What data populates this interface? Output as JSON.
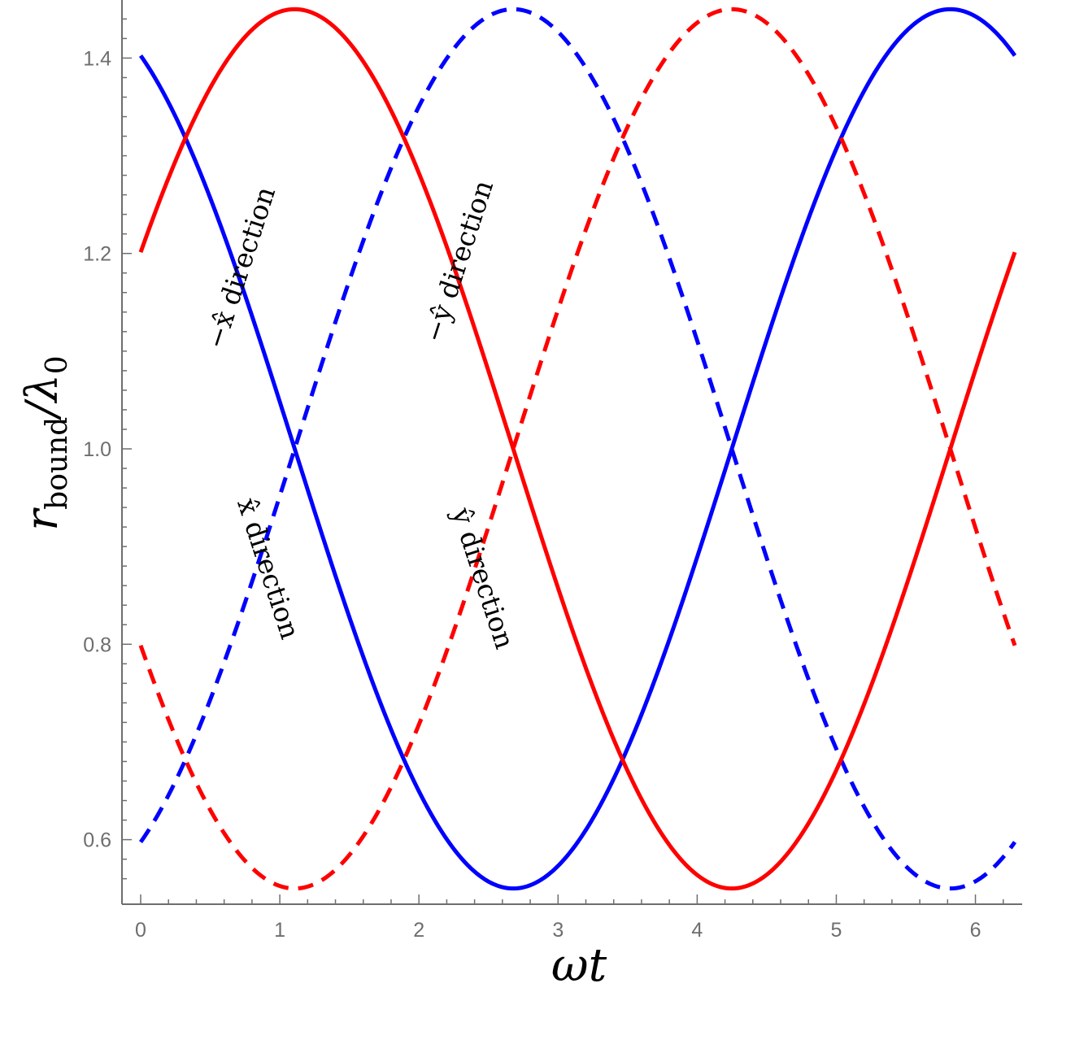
{
  "chart_data": {
    "type": "line",
    "xlabel": "ωt",
    "ylabel_main": "r",
    "ylabel_sub": "bound",
    "ylabel_rest": "/λ",
    "ylabel_rest_sub": "0",
    "xlim": [
      0,
      6.2832
    ],
    "ylim": [
      0.55,
      1.45
    ],
    "xticks": [
      0,
      1,
      2,
      3,
      4,
      5,
      6
    ],
    "yticks": [
      0.6,
      0.8,
      1.0,
      1.2,
      1.4
    ],
    "ytick_labels": [
      "0.6",
      "0.8",
      "1.0",
      "1.2",
      "1.4"
    ],
    "grid": false,
    "colors": {
      "blue": "#0000ff",
      "red": "#ff0000",
      "axis": "#6e6e6e"
    },
    "series": [
      {
        "label": "x̂ direction",
        "color": "#0000ff",
        "dash": "solid",
        "center": 1.0,
        "amplitude": 0.45,
        "phase": 0.4636,
        "sign": 1
      },
      {
        "label": "−x̂ direction",
        "color": "#0000ff",
        "dash": "dashed",
        "center": 1.0,
        "amplitude": 0.45,
        "phase": 0.4636,
        "sign": -1
      },
      {
        "label": "ŷ direction",
        "color": "#ff0000",
        "dash": "solid",
        "center": 1.0,
        "amplitude": 0.45,
        "phase": -1.1071,
        "sign": 1
      },
      {
        "label": "−ŷ direction",
        "color": "#ff0000",
        "dash": "dashed",
        "center": 1.0,
        "amplitude": 0.45,
        "phase": -1.1071,
        "sign": -1
      }
    ],
    "annotations": [
      {
        "text": "x̂ direction"
      },
      {
        "text": "−x̂ direction"
      },
      {
        "text": "ŷ direction"
      },
      {
        "text": "−ŷ direction"
      }
    ]
  }
}
